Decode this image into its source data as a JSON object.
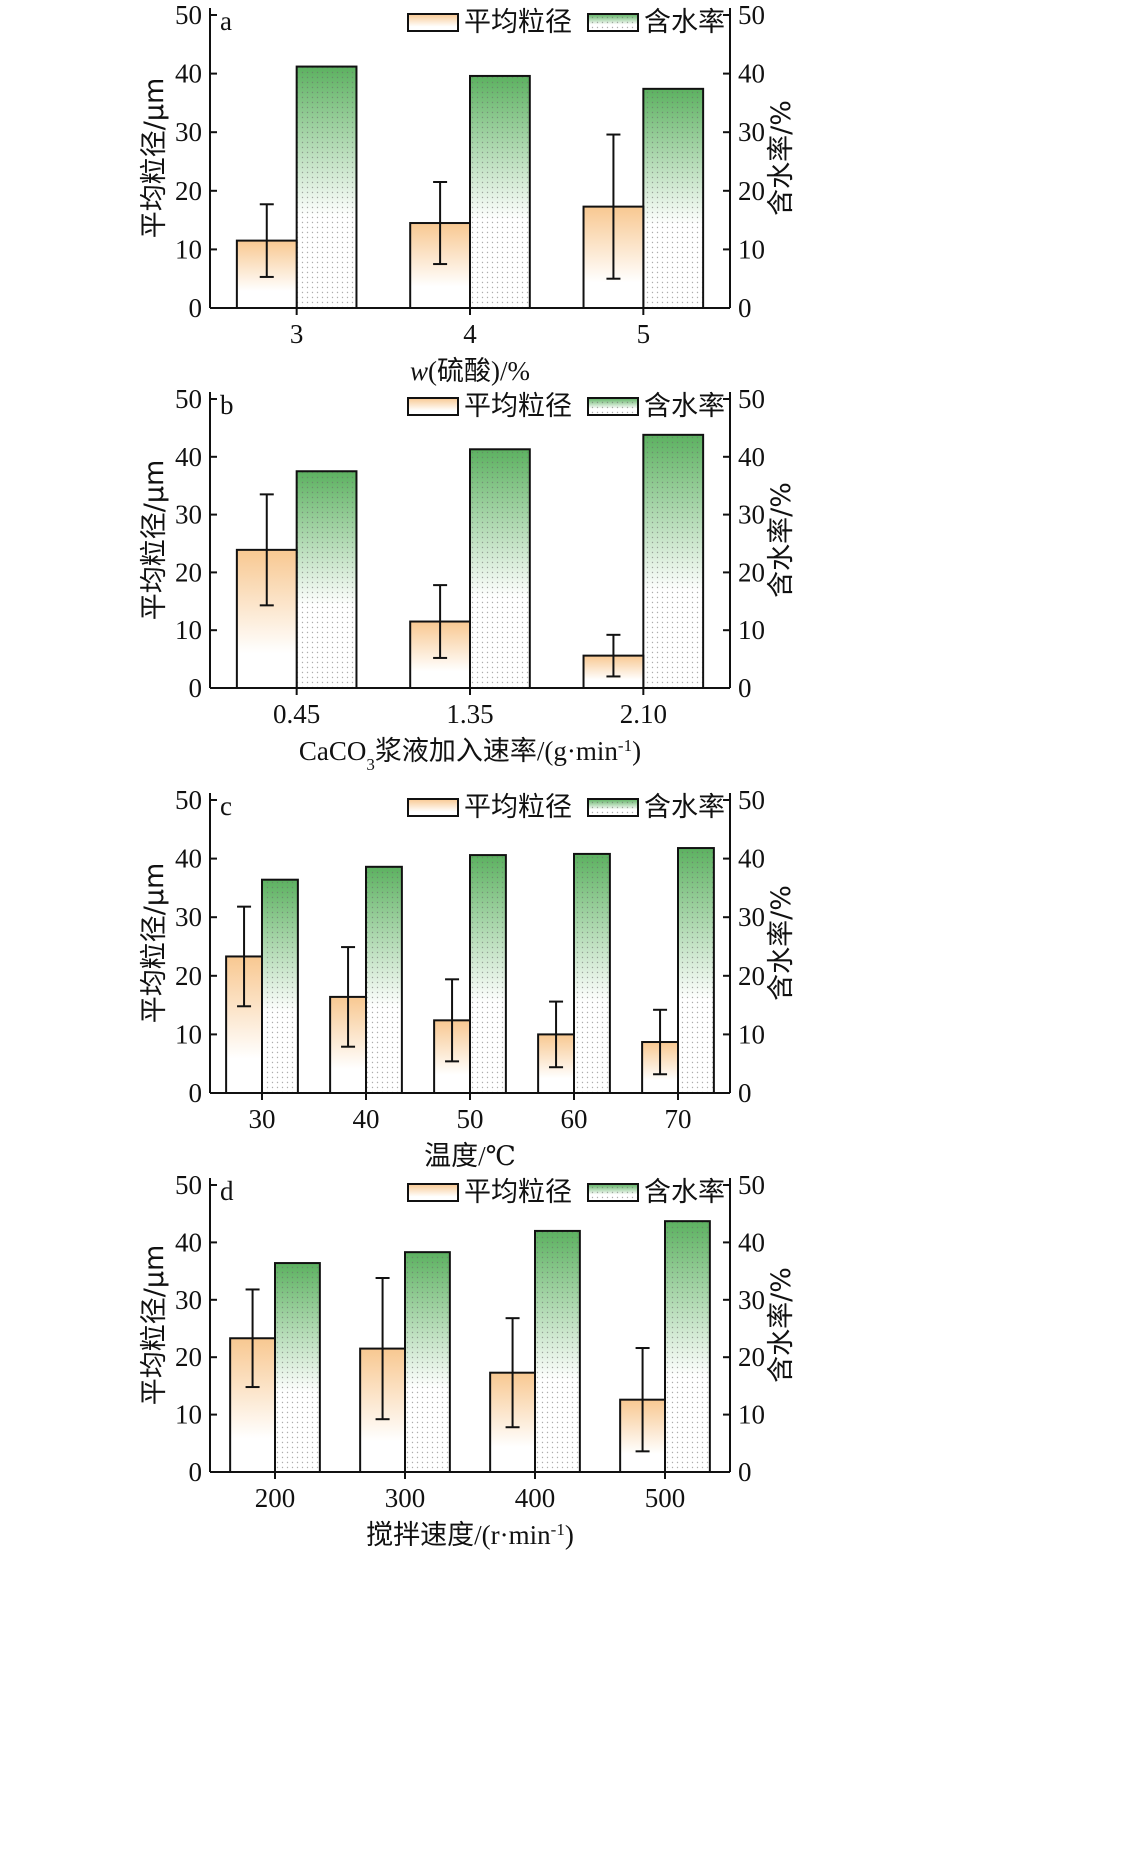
{
  "legend": {
    "size_label": "平均粒径",
    "water_label": "含水率"
  },
  "colors": {
    "size_fill_top": "#f8c891",
    "size_fill_bottom": "#ffffff",
    "water_fill_top": "#5cb160",
    "water_fill_bottom": "#ffffff",
    "axis": "#111111"
  },
  "chart_data": [
    {
      "type": "bar",
      "panel": "a",
      "categories": [
        "3",
        "4",
        "5"
      ],
      "xlabel_parts": [
        {
          "t": "w",
          "i": true
        },
        {
          "t": "(硫酸)/%"
        }
      ],
      "ylabel_left": "平均粒径/μm",
      "ylabel_right": "含水率/%",
      "ylim": [
        0,
        50
      ],
      "yticks": [
        0,
        10,
        20,
        30,
        40,
        50
      ],
      "series": [
        {
          "name": "平均粒径",
          "axis": "left",
          "values": [
            11.5,
            14.5,
            17.3
          ],
          "errors": [
            6.2,
            7.0,
            12.3
          ]
        },
        {
          "name": "含水率",
          "axis": "right",
          "values": [
            41.2,
            39.6,
            37.4
          ]
        }
      ]
    },
    {
      "type": "bar",
      "panel": "b",
      "categories": [
        "0.45",
        "1.35",
        "2.10"
      ],
      "xlabel_parts": [
        {
          "t": "CaCO"
        },
        {
          "t": "3",
          "sub": true
        },
        {
          "t": "浆液加入速率/(g·min"
        },
        {
          "t": "-1",
          "sup": true
        },
        {
          "t": ")"
        }
      ],
      "ylabel_left": "平均粒径/μm",
      "ylabel_right": "含水率/%",
      "ylim": [
        0,
        50
      ],
      "yticks": [
        0,
        10,
        20,
        30,
        40,
        50
      ],
      "series": [
        {
          "name": "平均粒径",
          "axis": "left",
          "values": [
            23.9,
            11.5,
            5.6
          ],
          "errors": [
            9.6,
            6.3,
            3.6
          ]
        },
        {
          "name": "含水率",
          "axis": "right",
          "values": [
            37.5,
            41.3,
            43.8
          ]
        }
      ]
    },
    {
      "type": "bar",
      "panel": "c",
      "categories": [
        "30",
        "40",
        "50",
        "60",
        "70"
      ],
      "xlabel_parts": [
        {
          "t": "温度/℃"
        }
      ],
      "ylabel_left": "平均粒径/μm",
      "ylabel_right": "含水率/%",
      "ylim": [
        0,
        50
      ],
      "yticks": [
        0,
        10,
        20,
        30,
        40,
        50
      ],
      "series": [
        {
          "name": "平均粒径",
          "axis": "left",
          "values": [
            23.3,
            16.4,
            12.4,
            10.0,
            8.7
          ],
          "errors": [
            8.5,
            8.5,
            7.0,
            5.6,
            5.5
          ]
        },
        {
          "name": "含水率",
          "axis": "right",
          "values": [
            36.4,
            38.6,
            40.6,
            40.8,
            41.8
          ]
        }
      ]
    },
    {
      "type": "bar",
      "panel": "d",
      "categories": [
        "200",
        "300",
        "400",
        "500"
      ],
      "xlabel_parts": [
        {
          "t": "搅拌速度/(r·min"
        },
        {
          "t": "-1",
          "sup": true
        },
        {
          "t": ")"
        }
      ],
      "ylabel_left": "平均粒径/μm",
      "ylabel_right": "含水率/%",
      "ylim": [
        0,
        50
      ],
      "yticks": [
        0,
        10,
        20,
        30,
        40,
        50
      ],
      "series": [
        {
          "name": "平均粒径",
          "axis": "left",
          "values": [
            23.3,
            21.5,
            17.3,
            12.6
          ],
          "errors": [
            8.5,
            12.3,
            9.5,
            9.0
          ]
        },
        {
          "name": "含水率",
          "axis": "right",
          "values": [
            36.4,
            38.3,
            42.0,
            43.7
          ]
        }
      ]
    }
  ]
}
